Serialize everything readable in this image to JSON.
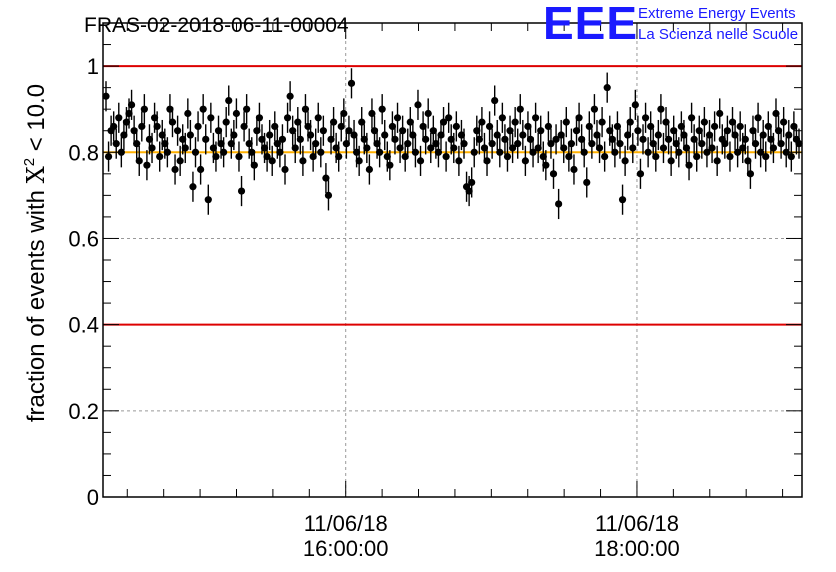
{
  "title": "FRAS-02-2018-06-11-00004",
  "logo": {
    "mark": "EEE",
    "line1": "Extreme Energy Events",
    "line2": "La Scienza nelle Scuole"
  },
  "colors": {
    "reference_line": "#dd0000",
    "mean_line": "#ffb000",
    "points": "#000000",
    "logo": "#1a1aff"
  },
  "chart_data": {
    "type": "scatter",
    "title": "FRAS-02-2018-06-11-00004",
    "ylabel_main": "fraction of events with ",
    "ylabel_symbol": "X",
    "ylabel_sup": "2",
    "ylabel_tail": " < 10.0",
    "ylim": [
      0,
      1.1
    ],
    "yticks": [
      0,
      0.2,
      0.4,
      0.6,
      0.8,
      1
    ],
    "ytick_labels": [
      "0",
      "0.2",
      "0.4",
      "0.6",
      "0.8",
      "1"
    ],
    "xlim": [
      "2018-06-11 14:20",
      "2018-06-11 19:08"
    ],
    "xticks": [
      {
        "time": "2018-06-11 16:00",
        "date_label": "11/06/18",
        "time_label": "16:00:00"
      },
      {
        "time": "2018-06-11 18:00",
        "date_label": "11/06/18",
        "time_label": "18:00:00"
      }
    ],
    "grid": true,
    "reference_lines": [
      1.0,
      0.4
    ],
    "mean_line": 0.8,
    "error": 0.035,
    "series": [
      {
        "values": [
          0.93,
          0.79,
          0.85,
          0.86,
          0.82,
          0.88,
          0.8,
          0.84,
          0.87,
          0.89,
          0.91,
          0.85,
          0.82,
          0.78,
          0.86,
          0.9,
          0.77,
          0.83,
          0.81,
          0.88,
          0.86,
          0.79,
          0.84,
          0.82,
          0.8,
          0.9,
          0.87,
          0.76,
          0.85,
          0.78,
          0.83,
          0.81,
          0.89,
          0.84,
          0.72,
          0.8,
          0.86,
          0.76,
          0.9,
          0.83,
          0.69,
          0.88,
          0.81,
          0.79,
          0.85,
          0.82,
          0.8,
          0.87,
          0.92,
          0.82,
          0.84,
          0.89,
          0.79,
          0.71,
          0.86,
          0.9,
          0.82,
          0.8,
          0.77,
          0.85,
          0.88,
          0.83,
          0.81,
          0.79,
          0.84,
          0.78,
          0.86,
          0.82,
          0.8,
          0.83,
          0.76,
          0.88,
          0.93,
          0.85,
          0.81,
          0.87,
          0.83,
          0.78,
          0.9,
          0.86,
          0.84,
          0.79,
          0.82,
          0.88,
          0.8,
          0.85,
          0.74,
          0.7,
          0.83,
          0.87,
          0.81,
          0.79,
          0.86,
          0.89,
          0.82,
          0.85,
          0.96,
          0.84,
          0.8,
          0.78,
          0.87,
          0.83,
          0.81,
          0.76,
          0.89,
          0.85,
          0.82,
          0.8,
          0.9,
          0.84,
          0.79,
          0.77,
          0.86,
          0.83,
          0.88,
          0.81,
          0.85,
          0.79,
          0.82,
          0.87,
          0.84,
          0.8,
          0.91,
          0.78,
          0.86,
          0.83,
          0.89,
          0.81,
          0.85,
          0.82,
          0.8,
          0.84,
          0.87,
          0.79,
          0.88,
          0.83,
          0.81,
          0.86,
          0.78,
          0.84,
          0.82,
          0.72,
          0.71,
          0.73,
          0.8,
          0.85,
          0.83,
          0.87,
          0.81,
          0.78,
          0.86,
          0.82,
          0.92,
          0.84,
          0.8,
          0.88,
          0.83,
          0.79,
          0.85,
          0.81,
          0.87,
          0.82,
          0.9,
          0.84,
          0.78,
          0.86,
          0.83,
          0.8,
          0.88,
          0.81,
          0.85,
          0.79,
          0.77,
          0.86,
          0.82,
          0.75,
          0.83,
          0.68,
          0.84,
          0.81,
          0.87,
          0.79,
          0.82,
          0.76,
          0.85,
          0.88,
          0.83,
          0.8,
          0.73,
          0.86,
          0.82,
          0.9,
          0.84,
          0.81,
          0.87,
          0.79,
          0.95,
          0.85,
          0.83,
          0.8,
          0.86,
          0.82,
          0.69,
          0.78,
          0.84,
          0.87,
          0.81,
          0.91,
          0.85,
          0.75,
          0.83,
          0.88,
          0.8,
          0.86,
          0.82,
          0.79,
          0.84,
          0.9,
          0.81,
          0.87,
          0.83,
          0.78,
          0.85,
          0.82,
          0.8,
          0.86,
          0.84,
          0.81,
          0.77,
          0.88,
          0.83,
          0.79,
          0.85,
          0.82,
          0.87,
          0.8,
          0.84,
          0.81,
          0.86,
          0.78,
          0.89,
          0.83,
          0.82,
          0.85,
          0.79,
          0.87,
          0.84,
          0.8,
          0.86,
          0.81,
          0.83,
          0.78,
          0.75,
          0.85,
          0.82,
          0.88,
          0.8,
          0.84,
          0.79,
          0.86,
          0.83,
          0.81,
          0.89,
          0.85,
          0.82,
          0.87,
          0.8,
          0.84,
          0.79,
          0.86,
          0.83,
          0.82
        ]
      }
    ]
  }
}
